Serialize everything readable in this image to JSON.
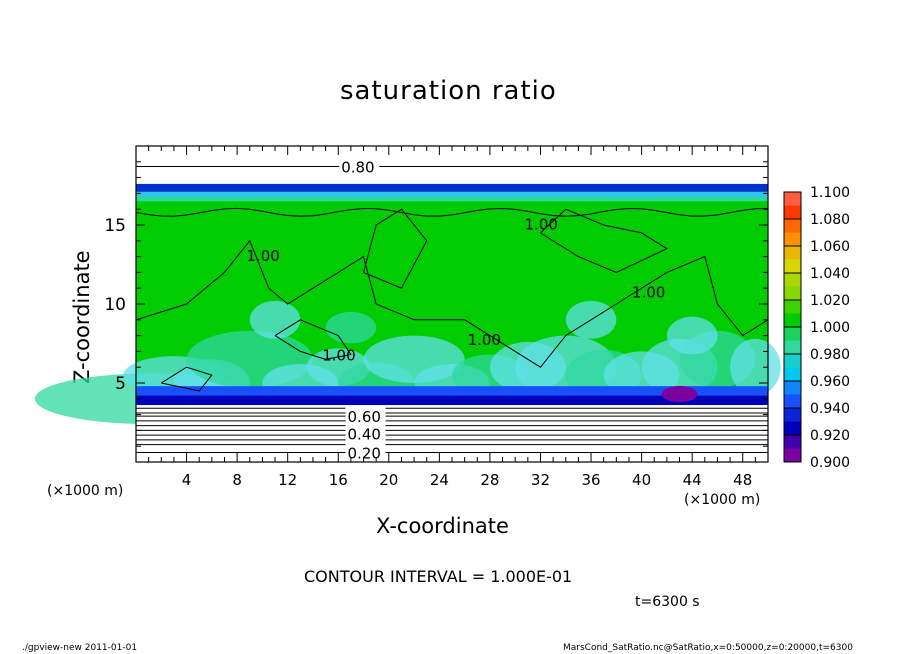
{
  "title": "saturation ratio",
  "xlabel": "X-coordinate",
  "ylabel": "Z-coordinate",
  "x_unit_left": "(×1000 m)",
  "x_unit_right": "(×1000 m)",
  "contour_interval": "CONTOUR INTERVAL = 1.000E-01",
  "time_label": "t=6300 s",
  "footer_left": "./gpview-new   2011-01-01",
  "footer_right": "MarsCond_SatRatio.nc@SatRatio,x=0:50000,z=0:20000,t=6300",
  "chart_data": {
    "type": "heatmap",
    "x_ticks": [
      "4",
      "8",
      "12",
      "16",
      "20",
      "24",
      "28",
      "32",
      "36",
      "40",
      "44",
      "48"
    ],
    "x_tick_values": [
      4,
      8,
      12,
      16,
      20,
      24,
      28,
      32,
      36,
      40,
      44,
      48
    ],
    "y_ticks": [
      "5",
      "10",
      "15"
    ],
    "y_tick_values": [
      5,
      10,
      15
    ],
    "xlim": [
      0,
      50
    ],
    "ylim": [
      0,
      20
    ],
    "colorbar": {
      "levels": [
        "0.900",
        "0.920",
        "0.940",
        "0.960",
        "0.980",
        "1.000",
        "1.020",
        "1.040",
        "1.060",
        "1.080",
        "1.100"
      ],
      "level_values": [
        0.9,
        0.92,
        0.94,
        0.96,
        0.98,
        1.0,
        1.02,
        1.04,
        1.06,
        1.08,
        1.1
      ],
      "colors": [
        "#7a00a0",
        "#0000b8",
        "#1850ff",
        "#00c8f0",
        "#30d8a0",
        "#00cc00",
        "#88d800",
        "#d8d800",
        "#ff9000",
        "#ff3800",
        "#ff8c8c"
      ]
    },
    "contour_labels": [
      {
        "text": "0.80",
        "x": 17.5,
        "z": 18.7
      },
      {
        "text": "1.00",
        "x": 32.0,
        "z": 15.1
      },
      {
        "text": "1.00",
        "x": 10.0,
        "z": 13.1
      },
      {
        "text": "1.00",
        "x": 40.5,
        "z": 10.8
      },
      {
        "text": "1.00",
        "x": 16.0,
        "z": 6.8
      },
      {
        "text": "1.00",
        "x": 27.5,
        "z": 7.8
      },
      {
        "text": "0.60",
        "x": 18.0,
        "z": 2.9
      },
      {
        "text": "0.40",
        "x": 18.0,
        "z": 1.8
      },
      {
        "text": "0.20",
        "x": 18.0,
        "z": 0.6
      }
    ]
  }
}
